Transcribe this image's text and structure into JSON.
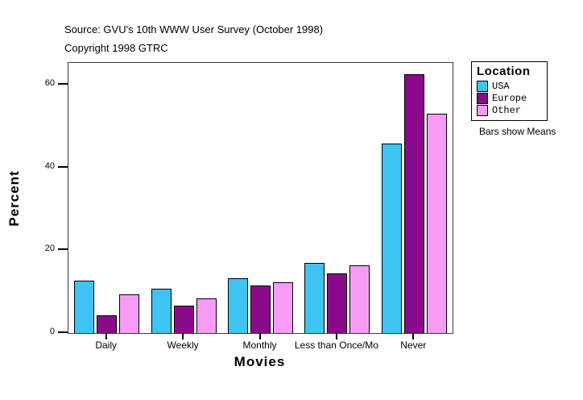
{
  "header": {
    "source": "Source: GVU's 10th WWW User Survey (October 1998)",
    "copyright": "Copyright 1998 GTRC"
  },
  "chart_data": {
    "type": "bar",
    "title": "",
    "categories": [
      "Daily",
      "Weekly",
      "Monthly",
      "Less than Once/Mo",
      "Never"
    ],
    "series": [
      {
        "name": "USA",
        "color": "#3EC4F0",
        "values": [
          12.7,
          10.7,
          13.2,
          17.0,
          45.9
        ]
      },
      {
        "name": "Europe",
        "color": "#8B0A8B",
        "values": [
          4.3,
          6.6,
          11.5,
          14.4,
          62.6
        ]
      },
      {
        "name": "Other",
        "color": "#F79BF7",
        "values": [
          9.4,
          8.3,
          12.2,
          16.3,
          53.1
        ]
      }
    ],
    "xlabel": "Movies",
    "ylabel": "Percent",
    "yticks": [
      0,
      20,
      40,
      60
    ],
    "ylim": [
      0,
      65.3
    ],
    "grid": false,
    "legend_position": "right",
    "bar_border_color": "#000000",
    "frame_color": "#3a3a3a"
  },
  "legend": {
    "title": "Location",
    "note": "Bars show Means"
  }
}
